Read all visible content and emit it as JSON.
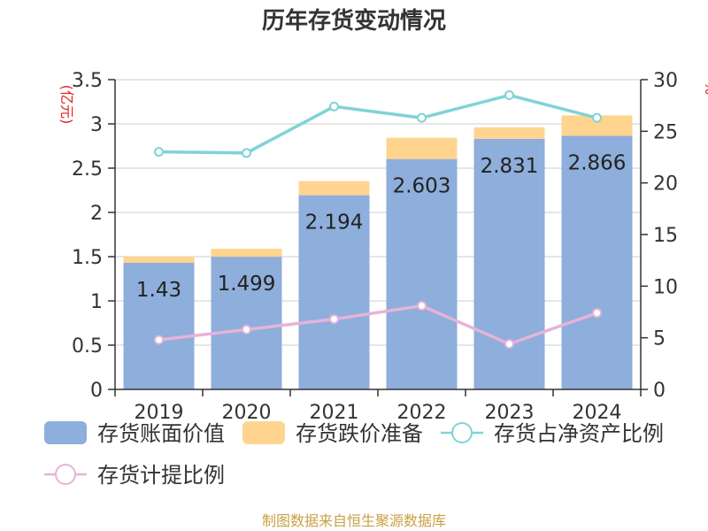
{
  "title": "历年存货变动情况",
  "source": "制图数据来自恒生聚源数据库",
  "colors": {
    "book_value": "#8eaedb",
    "impairment": "#fed48f",
    "net_asset_ratio": "#7fd3d6",
    "provision_ratio": "#e6b3d8"
  },
  "chart_data": {
    "type": "bar",
    "title": "历年存货变动情况",
    "categories": [
      "2019",
      "2020",
      "2021",
      "2022",
      "2023",
      "2024"
    ],
    "left_axis": {
      "unit": "(亿元)",
      "ylim": [
        0,
        3.5
      ],
      "ticks": [
        "0",
        "0.5",
        "1",
        "1.5",
        "2",
        "2.5",
        "3",
        "3.5"
      ]
    },
    "right_axis": {
      "unit": "%",
      "ylim": [
        0,
        30
      ],
      "ticks": [
        "0",
        "5",
        "10",
        "15",
        "20",
        "25",
        "30"
      ]
    },
    "series": [
      {
        "name": "存货账面价值",
        "kind": "bar",
        "stack": "inv",
        "axis": "left",
        "values": [
          1.43,
          1.499,
          2.194,
          2.603,
          2.831,
          2.866
        ],
        "labels": [
          "1.43",
          "1.499",
          "2.194",
          "2.603",
          "2.831",
          "2.866"
        ]
      },
      {
        "name": "存货跌价准备",
        "kind": "bar",
        "stack": "inv",
        "axis": "left",
        "values": [
          0.07,
          0.09,
          0.16,
          0.24,
          0.13,
          0.23
        ]
      },
      {
        "name": "存货占净资产比例",
        "kind": "line",
        "axis": "right",
        "values": [
          23.0,
          22.9,
          27.4,
          26.3,
          28.5,
          26.3
        ]
      },
      {
        "name": "存货计提比例",
        "kind": "line",
        "axis": "right",
        "values": [
          4.8,
          5.8,
          6.8,
          8.1,
          4.4,
          7.4
        ]
      }
    ]
  }
}
